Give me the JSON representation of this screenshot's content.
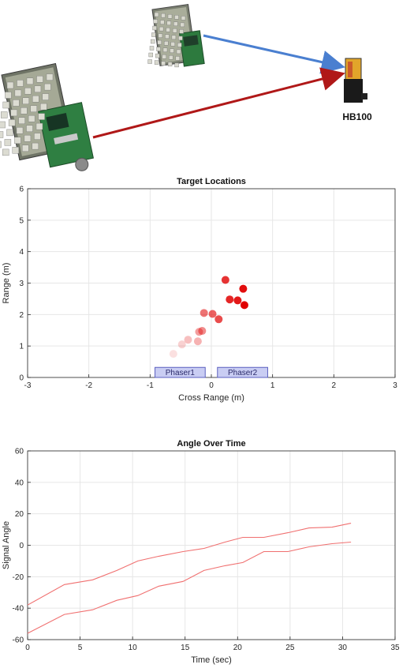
{
  "hardware": {
    "receiver_label": "HB100"
  },
  "colors": {
    "blue_link": "#4a7fd0",
    "red_link": "#b01818",
    "target_red": "#e00000",
    "phaser_fill": "#c9cdf3",
    "phaser_stroke": "#5a5fbf",
    "line_series": "#f07070"
  },
  "chart_data": [
    {
      "type": "scatter",
      "title": "Target Locations",
      "xlabel": "Cross Range (m)",
      "ylabel": "Range (m)",
      "xlim": [
        -3,
        3
      ],
      "ylim": [
        0,
        6
      ],
      "xticks": [
        -3,
        -2,
        -1,
        0,
        1,
        2,
        3
      ],
      "yticks": [
        0,
        1,
        2,
        3,
        4,
        5,
        6
      ],
      "grid": true,
      "points": [
        {
          "x": -0.62,
          "y": 0.75,
          "alpha": 0.12
        },
        {
          "x": -0.48,
          "y": 1.05,
          "alpha": 0.18
        },
        {
          "x": -0.38,
          "y": 1.2,
          "alpha": 0.25
        },
        {
          "x": -0.22,
          "y": 1.15,
          "alpha": 0.3
        },
        {
          "x": -0.2,
          "y": 1.45,
          "alpha": 0.38
        },
        {
          "x": -0.15,
          "y": 1.48,
          "alpha": 0.45
        },
        {
          "x": -0.12,
          "y": 2.05,
          "alpha": 0.55
        },
        {
          "x": 0.02,
          "y": 2.02,
          "alpha": 0.62
        },
        {
          "x": 0.12,
          "y": 1.85,
          "alpha": 0.7
        },
        {
          "x": 0.23,
          "y": 3.1,
          "alpha": 0.8
        },
        {
          "x": 0.3,
          "y": 2.48,
          "alpha": 0.85
        },
        {
          "x": 0.43,
          "y": 2.45,
          "alpha": 0.9
        },
        {
          "x": 0.52,
          "y": 2.82,
          "alpha": 0.95
        },
        {
          "x": 0.54,
          "y": 2.3,
          "alpha": 1.0
        }
      ],
      "phasers": [
        {
          "label": "Phaser1",
          "x0": -0.92,
          "x1": -0.1,
          "y0": 0,
          "y1": 0.32
        },
        {
          "label": "Phaser2",
          "x0": 0.1,
          "x1": 0.92,
          "y0": 0,
          "y1": 0.32
        }
      ]
    },
    {
      "type": "line",
      "title": "Angle Over Time",
      "xlabel": "Time (sec)",
      "ylabel": "Signal Angle",
      "xlim": [
        0,
        35
      ],
      "ylim": [
        -60,
        60
      ],
      "xticks": [
        0,
        5,
        10,
        15,
        20,
        25,
        30,
        35
      ],
      "yticks": [
        -60,
        -40,
        -20,
        0,
        20,
        40,
        60
      ],
      "grid": true,
      "series": [
        {
          "x": [
            0,
            3.5,
            6.2,
            8.5,
            10.5,
            12.5,
            14.8,
            16.8,
            18.8,
            20.5,
            22.5,
            24.8,
            26.8,
            29,
            30.8
          ],
          "y": [
            -38,
            -25,
            -22,
            -16,
            -10,
            -7,
            -4,
            -2,
            2,
            5,
            5,
            8,
            11,
            11.5,
            14
          ]
        },
        {
          "x": [
            0,
            3.5,
            6.2,
            8.5,
            10.5,
            12.5,
            14.8,
            16.8,
            18.8,
            20.5,
            22.5,
            24.8,
            26.8,
            29,
            30.8
          ],
          "y": [
            -56,
            -44,
            -41,
            -35,
            -32,
            -26,
            -23,
            -16,
            -13,
            -11,
            -4,
            -4,
            -1,
            1,
            2
          ]
        }
      ]
    }
  ]
}
